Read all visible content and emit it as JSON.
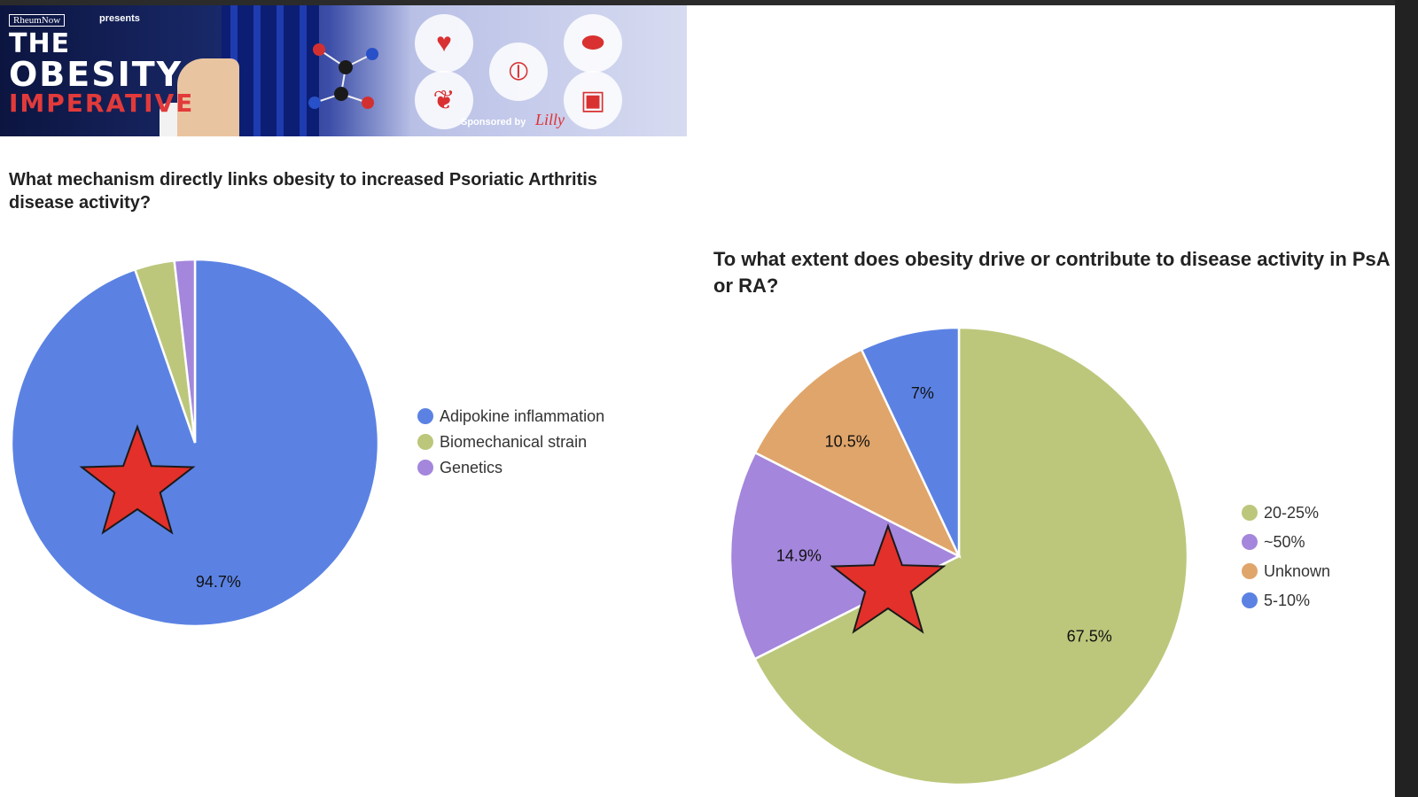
{
  "banner": {
    "brand": "RheumNow",
    "presents": "presents",
    "title_line1": "THE",
    "title_line2": "OBESITY",
    "title_line3": "IMPERATIVE",
    "sponsored": "Sponsored by",
    "sponsor_name": "Lilly",
    "icons": [
      "heart-icon",
      "liver-icon",
      "joint-icon",
      "kidney-icon",
      "glucose-meter-icon"
    ]
  },
  "chart_data": [
    {
      "type": "pie",
      "title": "What mechanism directly links obesity to increased Psoriatic Arthritis disease activity?",
      "labels": [
        "Adipokine inflammation",
        "Biomechanical strain",
        "Genetics"
      ],
      "values": [
        94.7,
        3.5,
        1.8
      ],
      "data_labels": [
        "94.7%",
        "",
        ""
      ],
      "colors": [
        "#5b82e3",
        "#bcc77b",
        "#a486dc"
      ],
      "legend_position": "right",
      "highlight": "Adipokine inflammation"
    },
    {
      "type": "pie",
      "title": "To what extent does obesity drive or contribute to disease activity in PsA or RA?",
      "labels": [
        "20-25%",
        "~50%",
        "Unknown",
        "5-10%"
      ],
      "values": [
        67.5,
        14.9,
        10.5,
        7
      ],
      "data_labels": [
        "67.5%",
        "14.9%",
        "10.5%",
        "7%"
      ],
      "colors": [
        "#bcc77b",
        "#a486dc",
        "#e0a56a",
        "#5b82e3"
      ],
      "legend_position": "right",
      "highlight": "~50%"
    }
  ]
}
